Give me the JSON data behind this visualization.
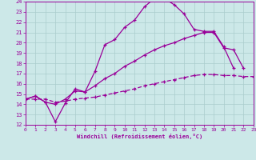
{
  "xlabel": "Windchill (Refroidissement éolien,°C)",
  "bg_color": "#cce8e8",
  "grid_color": "#aacccc",
  "line_color": "#990099",
  "ylim": [
    12,
    24
  ],
  "xlim": [
    0,
    23
  ],
  "yticks": [
    12,
    13,
    14,
    15,
    16,
    17,
    18,
    19,
    20,
    21,
    22,
    23,
    24
  ],
  "xticks": [
    0,
    1,
    2,
    3,
    4,
    5,
    6,
    7,
    8,
    9,
    10,
    11,
    12,
    13,
    14,
    15,
    16,
    17,
    18,
    19,
    20,
    21,
    22,
    23
  ],
  "curve1_x": [
    0,
    1,
    2,
    3,
    4,
    5,
    6,
    7,
    8,
    9,
    10,
    11,
    12,
    13,
    14,
    15,
    16,
    17,
    18,
    19,
    20,
    21
  ],
  "curve1_y": [
    14.5,
    14.8,
    14.2,
    12.3,
    14.1,
    15.5,
    15.2,
    17.2,
    19.8,
    20.3,
    21.5,
    22.2,
    23.5,
    24.3,
    24.3,
    23.7,
    22.8,
    21.3,
    21.1,
    21.1,
    19.6,
    17.5
  ],
  "curve2_x": [
    0,
    1,
    2,
    3,
    4,
    5,
    6,
    7,
    8,
    9,
    10,
    11,
    12,
    13,
    14,
    15,
    16,
    17,
    18,
    19,
    20,
    21,
    22
  ],
  "curve2_y": [
    14.5,
    14.8,
    14.2,
    14.0,
    14.5,
    15.3,
    15.2,
    15.8,
    16.5,
    17.0,
    17.7,
    18.2,
    18.8,
    19.3,
    19.7,
    20.0,
    20.4,
    20.7,
    21.0,
    21.0,
    19.5,
    19.3,
    17.5
  ],
  "curve3_x": [
    0,
    1,
    2,
    3,
    4,
    5,
    6,
    7,
    8,
    9,
    10,
    11,
    12,
    13,
    14,
    15,
    16,
    17,
    18,
    19,
    20,
    21,
    22,
    23
  ],
  "curve3_y": [
    14.5,
    14.5,
    14.5,
    14.2,
    14.3,
    14.5,
    14.6,
    14.7,
    14.9,
    15.1,
    15.3,
    15.5,
    15.8,
    16.0,
    16.2,
    16.4,
    16.6,
    16.8,
    16.9,
    16.9,
    16.8,
    16.8,
    16.7,
    16.7
  ],
  "line_width": 0.9,
  "marker": "+",
  "marker_size": 3.5
}
